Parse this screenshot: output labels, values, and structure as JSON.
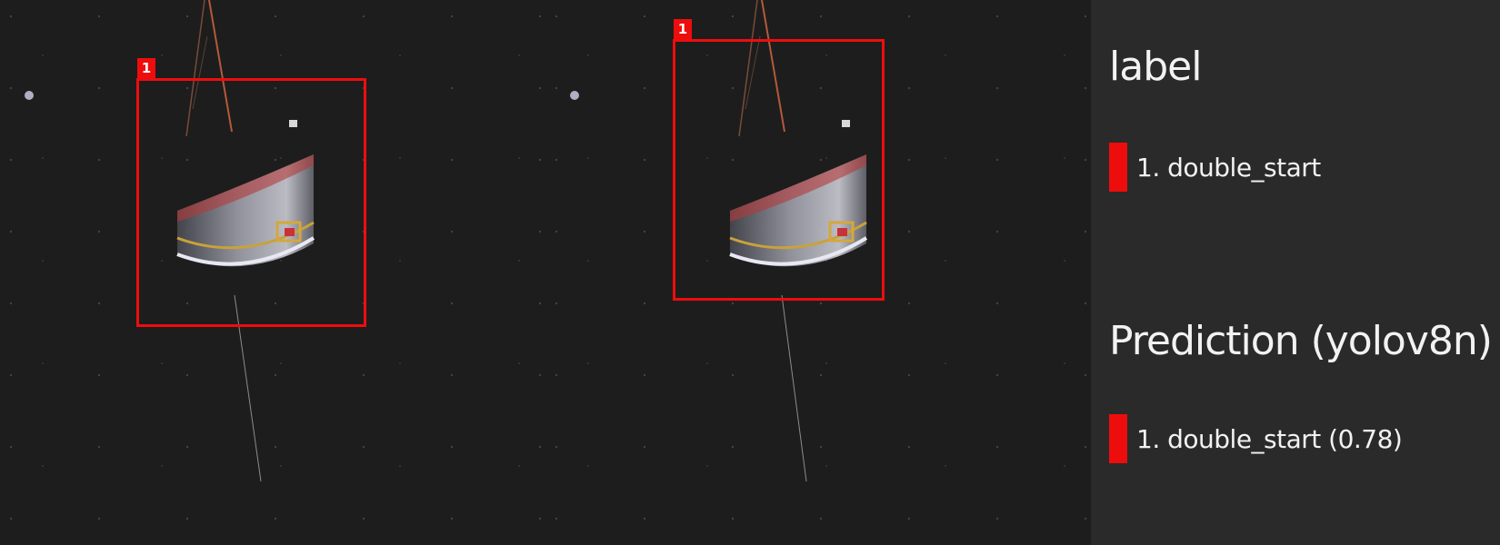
{
  "image_panels": {
    "label_panel": {
      "box_tag": "1"
    },
    "prediction_panel": {
      "box_tag": "1"
    }
  },
  "legend": {
    "label_heading": "label",
    "label_items": [
      {
        "text": "1. double_start"
      }
    ],
    "prediction_heading": "Prediction (yolov8n)",
    "prediction_items": [
      {
        "text": "1. double_start (0.78)"
      }
    ]
  },
  "colors": {
    "box": "#ee0d0d",
    "background": "#1d1d1d",
    "legend_background": "#2a2a2a",
    "legend_text": "#f2f2f2"
  }
}
